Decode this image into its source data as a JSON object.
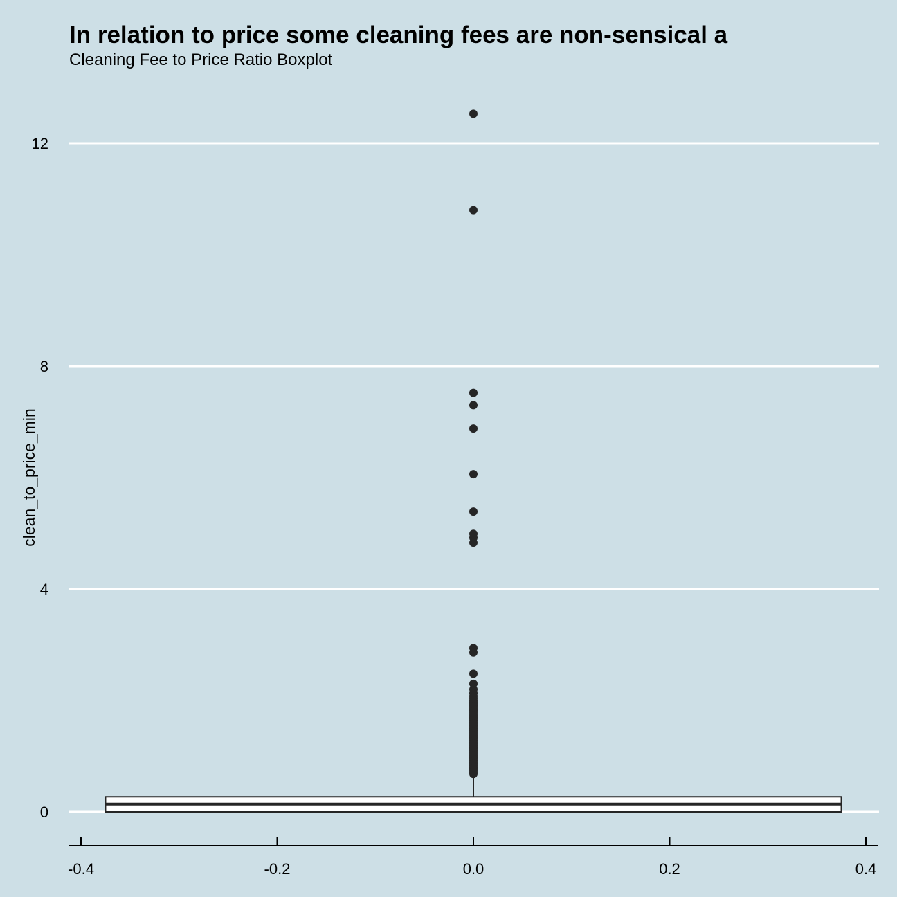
{
  "chart_data": {
    "type": "boxplot",
    "title": "In relation to price some cleaning fees are non-sensical a",
    "subtitle": "Cleaning Fee to Price Ratio Boxplot",
    "xlabel": "",
    "ylabel": "clean_to_price_min",
    "xlim": [
      -0.42,
      0.42
    ],
    "ylim": [
      -0.6,
      13.2
    ],
    "x_ticks": [
      -0.4,
      -0.2,
      0.0,
      0.2,
      0.4
    ],
    "x_tick_labels": [
      "-0.4",
      "-0.2",
      "0.0",
      "0.2",
      "0.4"
    ],
    "y_ticks": [
      0,
      4,
      8,
      12
    ],
    "y_tick_labels": [
      "0",
      "4",
      "8",
      "12"
    ],
    "grid": "horizontal major",
    "box": {
      "x_center": 0,
      "x_halfwidth": 0.375,
      "lower_whisker": 0,
      "q1": 0,
      "median": 0.14,
      "q3": 0.27,
      "upper_whisker": 0.61
    },
    "outliers": [
      0.68,
      0.71,
      0.74,
      0.77,
      0.8,
      0.83,
      0.86,
      0.89,
      0.92,
      0.95,
      0.98,
      1.01,
      1.04,
      1.07,
      1.1,
      1.13,
      1.16,
      1.19,
      1.22,
      1.25,
      1.28,
      1.31,
      1.34,
      1.37,
      1.4,
      1.43,
      1.46,
      1.49,
      1.52,
      1.55,
      1.58,
      1.61,
      1.64,
      1.67,
      1.7,
      1.73,
      1.76,
      1.79,
      1.82,
      1.85,
      1.88,
      1.91,
      1.94,
      1.97,
      2.0,
      2.04,
      2.08,
      2.13,
      2.2,
      2.3,
      2.48,
      2.86,
      2.94,
      4.83,
      4.92,
      4.99,
      5.39,
      6.06,
      6.88,
      7.3,
      7.52,
      10.8,
      12.53
    ],
    "colors": {
      "background": "#cddfe6",
      "grid": "#ffffff",
      "points": "#262626",
      "box_fill": "#ffffff",
      "box_line": "#262626"
    }
  }
}
